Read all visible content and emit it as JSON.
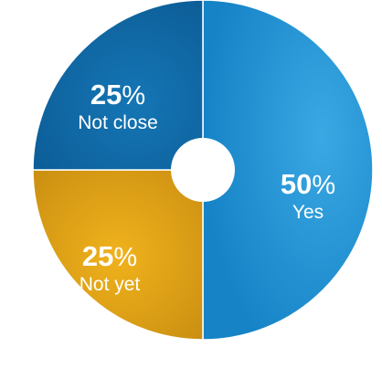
{
  "chart_data": {
    "type": "pie",
    "title": "",
    "slices": [
      {
        "label": "Yes",
        "value": 50,
        "value_text": "50",
        "unit": "%",
        "color": "#1f95d6"
      },
      {
        "label": "Not yet",
        "value": 25,
        "value_text": "25",
        "unit": "%",
        "color": "#e0a115"
      },
      {
        "label": "Not close",
        "value": 25,
        "value_text": "25",
        "unit": "%",
        "color": "#0f6aa6"
      }
    ],
    "start_angle": "top",
    "direction": "clockwise",
    "donut_hole": true,
    "legend": "none"
  }
}
